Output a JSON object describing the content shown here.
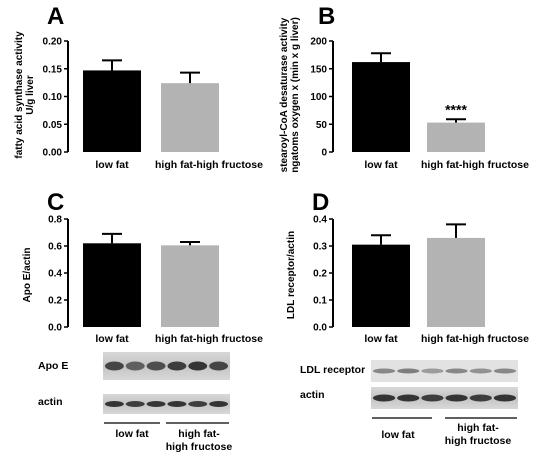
{
  "chart_data": [
    {
      "type": "bar",
      "panel": "A",
      "categories": [
        "low fat",
        "high fat-high fructose"
      ],
      "values": [
        0.147,
        0.124
      ],
      "errors": [
        0.018,
        0.019
      ],
      "colors": [
        "#000000",
        "#b3b3b3"
      ],
      "ylabel": [
        "fatty acid synthase activity",
        "U/g liver"
      ],
      "ylim": [
        0,
        0.2
      ],
      "yticks": [
        "0.00",
        "0.05",
        "0.10",
        "0.15",
        "0.20"
      ],
      "significance": [
        "",
        ""
      ]
    },
    {
      "type": "bar",
      "panel": "B",
      "categories": [
        "low fat",
        "high fat-high fructose"
      ],
      "values": [
        162,
        53
      ],
      "errors": [
        16,
        6
      ],
      "colors": [
        "#000000",
        "#b3b3b3"
      ],
      "ylabel": [
        "stearoyl-CoA desaturase activity",
        "ngatoms oxygen x (min x g liver)"
      ],
      "ylim": [
        0,
        200
      ],
      "yticks": [
        "0",
        "50",
        "100",
        "150",
        "200"
      ],
      "significance": [
        "",
        "****"
      ]
    },
    {
      "type": "bar",
      "panel": "C",
      "categories": [
        "low fat",
        "high fat-high fructose"
      ],
      "values": [
        0.62,
        0.605
      ],
      "errors": [
        0.07,
        0.025
      ],
      "colors": [
        "#000000",
        "#b3b3b3"
      ],
      "ylabel": [
        "Apo E/actin"
      ],
      "ylim": [
        0,
        0.8
      ],
      "yticks": [
        "0.0",
        "0.2",
        "0.4",
        "0.6",
        "0.8"
      ],
      "significance": [
        "",
        ""
      ]
    },
    {
      "type": "bar",
      "panel": "D",
      "categories": [
        "low fat",
        "high fat-high fructose"
      ],
      "values": [
        0.305,
        0.33
      ],
      "errors": [
        0.035,
        0.05
      ],
      "colors": [
        "#000000",
        "#b3b3b3"
      ],
      "ylabel": [
        "LDL receptor/actin"
      ],
      "ylim": [
        0,
        0.4
      ],
      "yticks": [
        "0.0",
        "0.1",
        "0.2",
        "0.3",
        "0.4"
      ],
      "significance": [
        "",
        ""
      ]
    }
  ],
  "blots": {
    "C": {
      "rows": [
        "Apo E",
        "actin"
      ],
      "groups": [
        [
          "low fat"
        ],
        [
          "high fat-",
          "high fructose"
        ]
      ]
    },
    "D": {
      "rows": [
        "LDL receptor",
        "actin"
      ],
      "groups": [
        [
          "low fat"
        ],
        [
          "high fat-",
          "high fructose"
        ]
      ]
    }
  }
}
